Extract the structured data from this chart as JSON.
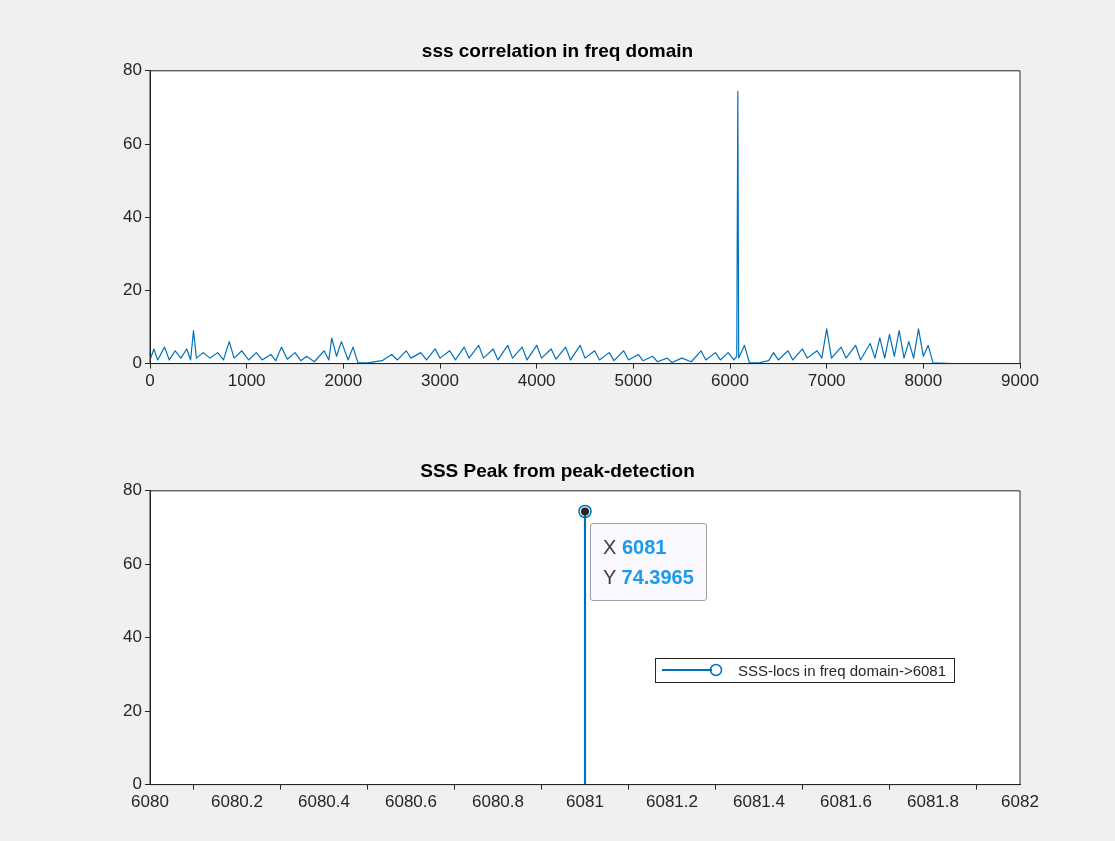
{
  "chart_data": [
    {
      "type": "line",
      "title": "sss correlation in freq domain",
      "xlim": [
        0,
        9000
      ],
      "xticks": [
        0,
        1000,
        2000,
        3000,
        4000,
        5000,
        6000,
        7000,
        8000,
        9000
      ],
      "ylim": [
        0,
        80
      ],
      "yticks": [
        0,
        20,
        40,
        60,
        80
      ],
      "grid": false,
      "legend": false,
      "marker": "none",
      "line_style": "solid",
      "series": [
        {
          "color": "#0072bd",
          "x": [
            0,
            40,
            80,
            150,
            200,
            260,
            320,
            380,
            420,
            450,
            480,
            550,
            620,
            700,
            760,
            820,
            870,
            950,
            1020,
            1100,
            1160,
            1250,
            1300,
            1360,
            1420,
            1500,
            1560,
            1620,
            1700,
            1800,
            1850,
            1880,
            1930,
            1980,
            2050,
            2100,
            2150,
            2250,
            2400,
            2500,
            2560,
            2650,
            2700,
            2800,
            2860,
            2950,
            3000,
            3100,
            3160,
            3250,
            3300,
            3400,
            3450,
            3550,
            3600,
            3700,
            3750,
            3850,
            3900,
            4000,
            4050,
            4150,
            4200,
            4300,
            4350,
            4450,
            4500,
            4600,
            4650,
            4750,
            4800,
            4900,
            4950,
            5050,
            5100,
            5200,
            5250,
            5350,
            5400,
            5500,
            5600,
            5700,
            5750,
            5850,
            5900,
            5980,
            6040,
            6070,
            6081,
            6090,
            6150,
            6200,
            6300,
            6400,
            6450,
            6500,
            6600,
            6650,
            6750,
            6800,
            6900,
            6950,
            7000,
            7050,
            7150,
            7200,
            7300,
            7350,
            7450,
            7500,
            7550,
            7600,
            7650,
            7700,
            7750,
            7800,
            7850,
            7900,
            7950,
            8000,
            8050,
            8100,
            8300
          ],
          "values": [
            1,
            4,
            1,
            4.5,
            1,
            3.5,
            1.5,
            4,
            1,
            9,
            1.5,
            3,
            1.5,
            3,
            1,
            6,
            1.5,
            3.5,
            1,
            3,
            1,
            2.5,
            0.8,
            4.5,
            1.2,
            3,
            0.8,
            2,
            0.5,
            3.5,
            1,
            7,
            2,
            6,
            1,
            4.5,
            0.3,
            0.2,
            0.8,
            2.5,
            1,
            3.5,
            1.5,
            3,
            1,
            4,
            1.5,
            3.5,
            1,
            4.5,
            1.5,
            5,
            1.5,
            4,
            1,
            5,
            1.5,
            4.5,
            1,
            5,
            1.5,
            4,
            1.2,
            4.5,
            1,
            5,
            1.5,
            3.5,
            1,
            3,
            0.8,
            3.5,
            1,
            2.5,
            0.8,
            2,
            0.5,
            1.5,
            0.3,
            1.5,
            0.5,
            3.5,
            1,
            3,
            1,
            3,
            1,
            2,
            74.4,
            1.5,
            5,
            0.3,
            0.2,
            0.8,
            3,
            1,
            3.5,
            1,
            4,
            1.5,
            3.5,
            1.5,
            9.5,
            1.5,
            4.5,
            1.5,
            5,
            1,
            5.5,
            1.5,
            7,
            1.5,
            8,
            2,
            9,
            1.5,
            6,
            1.5,
            9.5,
            2,
            5,
            0.2,
            0
          ]
        }
      ]
    },
    {
      "type": "lollipop",
      "title": "SSS Peak from peak-detection",
      "xlim": [
        6080,
        6082
      ],
      "xticks": [
        6080,
        {
          "value": 6080.2,
          "label": "6080.2"
        },
        {
          "value": 6080.4,
          "label": "6080.4"
        },
        {
          "value": 6080.6,
          "label": "6080.6"
        },
        {
          "value": 6080.8,
          "label": "6080.8"
        },
        6081,
        {
          "value": 6081.2,
          "label": "6081.2"
        },
        {
          "value": 6081.4,
          "label": "6081.4"
        },
        {
          "value": 6081.6,
          "label": "6081.6"
        },
        {
          "value": 6081.8,
          "label": "6081.8"
        },
        6082
      ],
      "ylim": [
        0,
        80
      ],
      "yticks": [
        0,
        20,
        40,
        60,
        80
      ],
      "grid": false,
      "legend": "center right",
      "marker": "circle",
      "series": [
        {
          "name": "SSS-locs in freq domain->6081",
          "color": "#0072bd",
          "x": [
            6081
          ],
          "values": [
            74.3965
          ]
        }
      ],
      "annotations": [
        {
          "text": "X 6081\nY 74.3965",
          "x": 6081,
          "y": 74.3965
        }
      ]
    }
  ]
}
